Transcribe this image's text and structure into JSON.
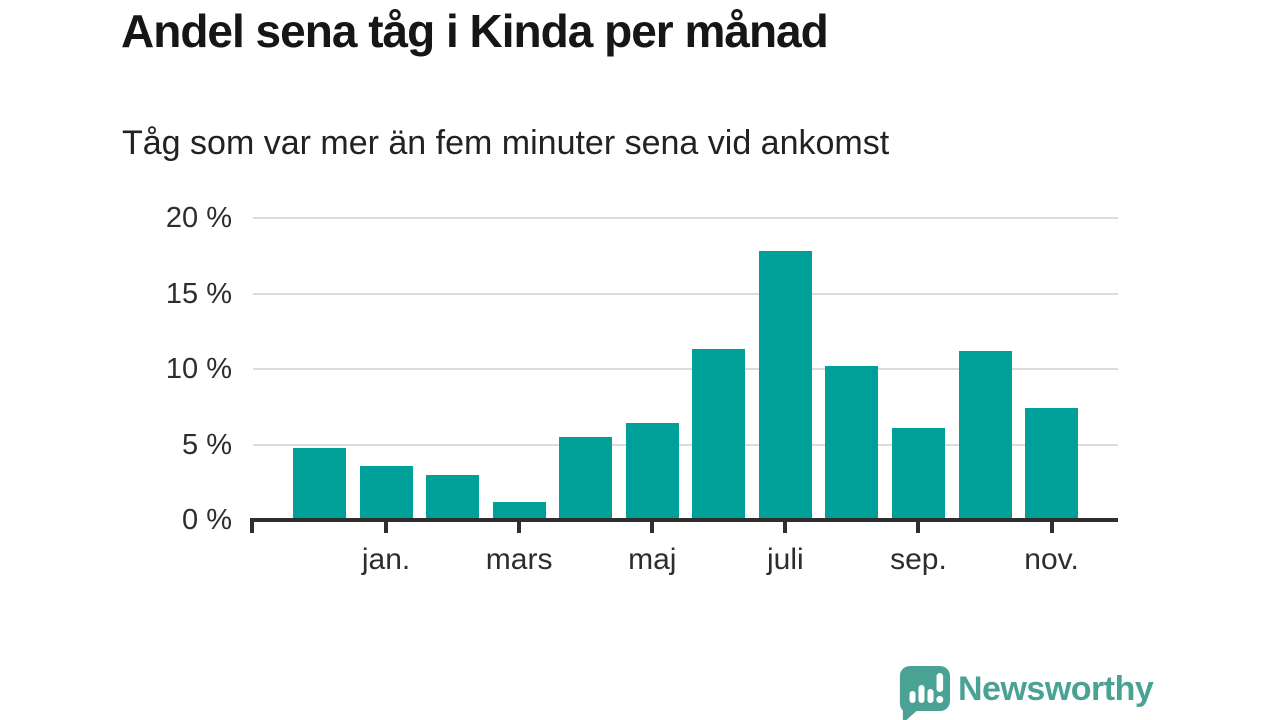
{
  "chart_data": {
    "type": "bar",
    "title": "Andel sena tåg i Kinda per månad",
    "subtitle": "Tåg som var mer än fem minuter sena vid ankomst",
    "unit": "%",
    "n_bars": 12,
    "values": [
      4.8,
      3.6,
      3.0,
      1.2,
      5.5,
      6.4,
      11.3,
      17.8,
      10.2,
      6.1,
      11.2,
      7.4
    ],
    "x_tick_labels": [
      "jan.",
      "mars",
      "maj",
      "juli",
      "sep.",
      "nov."
    ],
    "x_tick_bar_indices": [
      1,
      3,
      5,
      7,
      9,
      11
    ],
    "y_tick_labels": [
      "0 %",
      "5 %",
      "10 %",
      "15 %",
      "20 %"
    ],
    "y_tick_values": [
      0,
      5,
      10,
      15,
      20
    ],
    "ylim": [
      0,
      20
    ],
    "grid": "horizontal-only",
    "legend": "none"
  },
  "colors": {
    "bar": "#00a099",
    "axis": "#2e2e2e",
    "grid": "#dcdcdc",
    "brand": "#4aa294"
  },
  "footer": {
    "brand_label": "Newsworthy",
    "logo_icon": "newsworthy-speech-bubble-bar-chart-icon"
  }
}
